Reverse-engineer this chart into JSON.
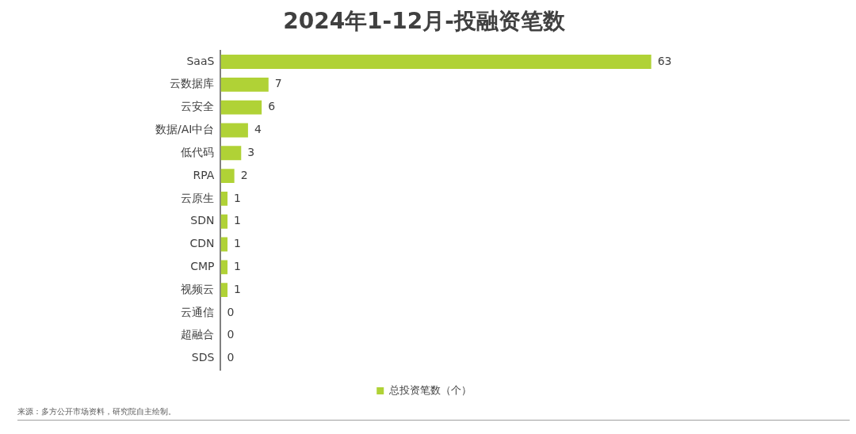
{
  "chart_data": {
    "type": "bar",
    "orientation": "horizontal",
    "title": "2024年1-12月-投融资笔数",
    "categories": [
      "SaaS",
      "云数据库",
      "云安全",
      "数据/AI中台",
      "低代码",
      "RPA",
      "云原生",
      "SDN",
      "CDN",
      "CMP",
      "视频云",
      "云通信",
      "超融合",
      "SDS"
    ],
    "series": [
      {
        "name": "总投资笔数（个）",
        "color": "#b0d236",
        "values": [
          63,
          7,
          6,
          4,
          3,
          2,
          1,
          1,
          1,
          1,
          1,
          0,
          0,
          0
        ]
      }
    ],
    "data_labels": true,
    "legend": "bottom",
    "annotations": [
      "来源：多方公开市场资料，研究院自主绘制。"
    ]
  }
}
